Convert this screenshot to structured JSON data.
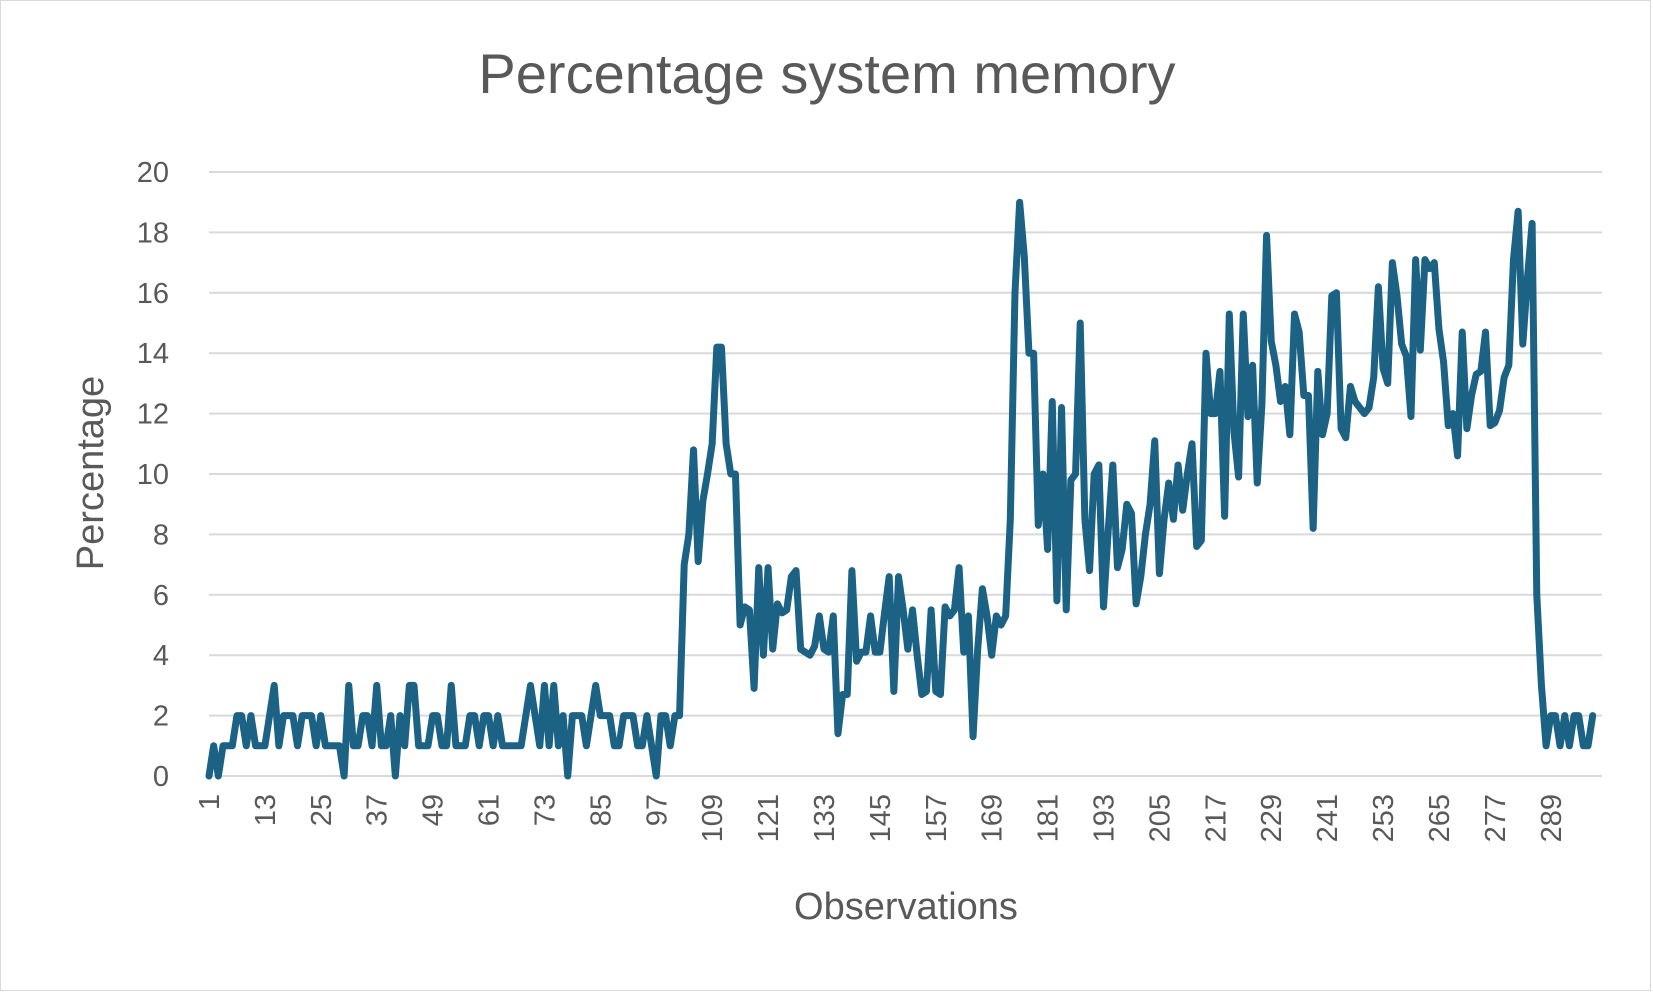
{
  "chart_data": {
    "type": "line",
    "title": "Percentage system memory",
    "xlabel": "Observations",
    "ylabel": "Percentage",
    "ylim": [
      0,
      20
    ],
    "yticks": [
      0,
      2,
      4,
      6,
      8,
      10,
      12,
      14,
      16,
      18,
      20
    ],
    "xlim": [
      1,
      300
    ],
    "xticks": [
      1,
      13,
      25,
      37,
      49,
      61,
      73,
      85,
      97,
      109,
      121,
      133,
      145,
      157,
      169,
      181,
      193,
      205,
      217,
      229,
      241,
      253,
      265,
      277,
      289
    ],
    "grid": true,
    "legend": "none",
    "series": [
      {
        "color": "#1b6285",
        "points": [
          [
            1,
            0
          ],
          [
            2,
            1
          ],
          [
            3,
            0
          ],
          [
            4,
            1
          ],
          [
            5,
            1
          ],
          [
            6,
            1
          ],
          [
            7,
            2
          ],
          [
            8,
            2
          ],
          [
            9,
            1
          ],
          [
            10,
            2
          ],
          [
            11,
            1
          ],
          [
            12,
            1
          ],
          [
            13,
            1
          ],
          [
            14,
            2
          ],
          [
            15,
            3
          ],
          [
            16,
            1
          ],
          [
            17,
            2
          ],
          [
            18,
            2
          ],
          [
            19,
            2
          ],
          [
            20,
            1
          ],
          [
            21,
            2
          ],
          [
            22,
            2
          ],
          [
            23,
            2
          ],
          [
            24,
            1
          ],
          [
            25,
            2
          ],
          [
            26,
            1
          ],
          [
            27,
            1
          ],
          [
            28,
            1
          ],
          [
            29,
            1
          ],
          [
            30,
            0
          ],
          [
            31,
            3
          ],
          [
            32,
            1
          ],
          [
            33,
            1
          ],
          [
            34,
            2
          ],
          [
            35,
            2
          ],
          [
            36,
            1
          ],
          [
            37,
            3
          ],
          [
            38,
            1
          ],
          [
            39,
            1
          ],
          [
            40,
            2
          ],
          [
            41,
            0
          ],
          [
            42,
            2
          ],
          [
            43,
            1
          ],
          [
            44,
            3
          ],
          [
            45,
            3
          ],
          [
            46,
            1
          ],
          [
            47,
            1
          ],
          [
            48,
            1
          ],
          [
            49,
            2
          ],
          [
            50,
            2
          ],
          [
            51,
            1
          ],
          [
            52,
            1
          ],
          [
            53,
            3
          ],
          [
            54,
            1
          ],
          [
            55,
            1
          ],
          [
            56,
            1
          ],
          [
            57,
            2
          ],
          [
            58,
            2
          ],
          [
            59,
            1
          ],
          [
            60,
            2
          ],
          [
            61,
            2
          ],
          [
            62,
            1
          ],
          [
            63,
            2
          ],
          [
            64,
            1
          ],
          [
            65,
            1
          ],
          [
            66,
            1
          ],
          [
            67,
            1
          ],
          [
            68,
            1
          ],
          [
            69,
            2
          ],
          [
            70,
            3
          ],
          [
            71,
            2
          ],
          [
            72,
            1
          ],
          [
            73,
            3
          ],
          [
            74,
            1
          ],
          [
            75,
            3
          ],
          [
            76,
            1
          ],
          [
            77,
            2
          ],
          [
            78,
            0
          ],
          [
            79,
            2
          ],
          [
            80,
            2
          ],
          [
            81,
            2
          ],
          [
            82,
            1
          ],
          [
            83,
            2
          ],
          [
            84,
            3
          ],
          [
            85,
            2
          ],
          [
            86,
            2
          ],
          [
            87,
            2
          ],
          [
            88,
            1
          ],
          [
            89,
            1
          ],
          [
            90,
            2
          ],
          [
            91,
            2
          ],
          [
            92,
            2
          ],
          [
            93,
            1
          ],
          [
            94,
            1
          ],
          [
            95,
            2
          ],
          [
            96,
            1
          ],
          [
            97,
            0
          ],
          [
            98,
            2
          ],
          [
            99,
            2
          ],
          [
            100,
            1
          ],
          [
            101,
            2
          ],
          [
            102,
            2
          ],
          [
            103,
            7
          ],
          [
            104,
            8
          ],
          [
            105,
            10.8
          ],
          [
            106,
            7.1
          ],
          [
            107,
            9.1
          ],
          [
            108,
            10
          ],
          [
            109,
            11
          ],
          [
            110,
            14.2
          ],
          [
            111,
            14.2
          ],
          [
            112,
            11
          ],
          [
            113,
            10
          ],
          [
            114,
            10
          ],
          [
            115,
            5
          ],
          [
            116,
            5.6
          ],
          [
            117,
            5.5
          ],
          [
            118,
            2.9
          ],
          [
            119,
            6.9
          ],
          [
            120,
            4
          ],
          [
            121,
            6.9
          ],
          [
            122,
            4.2
          ],
          [
            123,
            5.7
          ],
          [
            124,
            5.4
          ],
          [
            125,
            5.5
          ],
          [
            126,
            6.6
          ],
          [
            127,
            6.8
          ],
          [
            128,
            4.2
          ],
          [
            129,
            4.1
          ],
          [
            130,
            4
          ],
          [
            131,
            4.3
          ],
          [
            132,
            5.3
          ],
          [
            133,
            4.2
          ],
          [
            134,
            4.1
          ],
          [
            135,
            5.3
          ],
          [
            136,
            1.4
          ],
          [
            137,
            2.7
          ],
          [
            138,
            2.7
          ],
          [
            139,
            6.8
          ],
          [
            140,
            3.8
          ],
          [
            141,
            4.1
          ],
          [
            142,
            4.1
          ],
          [
            143,
            5.3
          ],
          [
            144,
            4.1
          ],
          [
            145,
            4.1
          ],
          [
            146,
            5.4
          ],
          [
            147,
            6.6
          ],
          [
            148,
            2.8
          ],
          [
            149,
            6.6
          ],
          [
            150,
            5.5
          ],
          [
            151,
            4.2
          ],
          [
            152,
            5.5
          ],
          [
            153,
            4
          ],
          [
            154,
            2.7
          ],
          [
            155,
            2.8
          ],
          [
            156,
            5.5
          ],
          [
            157,
            2.8
          ],
          [
            158,
            2.7
          ],
          [
            159,
            5.6
          ],
          [
            160,
            5.3
          ],
          [
            161,
            5.5
          ],
          [
            162,
            6.9
          ],
          [
            163,
            4.1
          ],
          [
            164,
            5.3
          ],
          [
            165,
            1.3
          ],
          [
            166,
            4.2
          ],
          [
            167,
            6.2
          ],
          [
            168,
            5.3
          ],
          [
            169,
            4
          ],
          [
            170,
            5.3
          ],
          [
            171,
            5
          ],
          [
            172,
            5.3
          ],
          [
            173,
            8.5
          ],
          [
            174,
            16
          ],
          [
            175,
            19
          ],
          [
            176,
            17.2
          ],
          [
            177,
            14
          ],
          [
            178,
            14
          ],
          [
            179,
            8.3
          ],
          [
            180,
            10
          ],
          [
            181,
            7.5
          ],
          [
            182,
            12.4
          ],
          [
            183,
            5.8
          ],
          [
            184,
            12.2
          ],
          [
            185,
            5.5
          ],
          [
            186,
            9.8
          ],
          [
            187,
            10
          ],
          [
            188,
            15
          ],
          [
            189,
            8.5
          ],
          [
            190,
            6.8
          ],
          [
            191,
            10
          ],
          [
            192,
            10.3
          ],
          [
            193,
            5.6
          ],
          [
            194,
            8.1
          ],
          [
            195,
            10.3
          ],
          [
            196,
            6.9
          ],
          [
            197,
            7.5
          ],
          [
            198,
            9
          ],
          [
            199,
            8.7
          ],
          [
            200,
            5.7
          ],
          [
            201,
            6.6
          ],
          [
            202,
            8
          ],
          [
            203,
            9
          ],
          [
            204,
            11.1
          ],
          [
            205,
            6.7
          ],
          [
            206,
            8.5
          ],
          [
            207,
            9.7
          ],
          [
            208,
            8.5
          ],
          [
            209,
            10.3
          ],
          [
            210,
            8.8
          ],
          [
            211,
            10
          ],
          [
            212,
            11
          ],
          [
            213,
            7.6
          ],
          [
            214,
            7.8
          ],
          [
            215,
            14
          ],
          [
            216,
            12
          ],
          [
            217,
            12
          ],
          [
            218,
            13.4
          ],
          [
            219,
            8.6
          ],
          [
            220,
            15.3
          ],
          [
            221,
            11.4
          ],
          [
            222,
            9.9
          ],
          [
            223,
            15.3
          ],
          [
            224,
            11.9
          ],
          [
            225,
            13.6
          ],
          [
            226,
            9.7
          ],
          [
            227,
            12.3
          ],
          [
            228,
            17.9
          ],
          [
            229,
            14.4
          ],
          [
            230,
            13.6
          ],
          [
            231,
            12.4
          ],
          [
            232,
            12.9
          ],
          [
            233,
            11.3
          ],
          [
            234,
            15.3
          ],
          [
            235,
            14.7
          ],
          [
            236,
            12.6
          ],
          [
            237,
            12.6
          ],
          [
            238,
            8.2
          ],
          [
            239,
            13.4
          ],
          [
            240,
            11.3
          ],
          [
            241,
            12
          ],
          [
            242,
            15.9
          ],
          [
            243,
            16
          ],
          [
            244,
            11.5
          ],
          [
            245,
            11.2
          ],
          [
            246,
            12.9
          ],
          [
            247,
            12.4
          ],
          [
            248,
            12.2
          ],
          [
            249,
            12
          ],
          [
            250,
            12.2
          ],
          [
            251,
            13.2
          ],
          [
            252,
            16.2
          ],
          [
            253,
            13.5
          ],
          [
            254,
            13
          ],
          [
            255,
            17
          ],
          [
            256,
            15.9
          ],
          [
            257,
            14.3
          ],
          [
            258,
            13.9
          ],
          [
            259,
            11.9
          ],
          [
            260,
            17.1
          ],
          [
            261,
            14.1
          ],
          [
            262,
            17.1
          ],
          [
            263,
            16.8
          ],
          [
            264,
            17
          ],
          [
            265,
            14.8
          ],
          [
            266,
            13.7
          ],
          [
            267,
            11.6
          ],
          [
            268,
            12
          ],
          [
            269,
            10.6
          ],
          [
            270,
            14.7
          ],
          [
            271,
            11.5
          ],
          [
            272,
            12.6
          ],
          [
            273,
            13.3
          ],
          [
            274,
            13.4
          ],
          [
            275,
            14.7
          ],
          [
            276,
            11.6
          ],
          [
            277,
            11.7
          ],
          [
            278,
            12.1
          ],
          [
            279,
            13.2
          ],
          [
            280,
            13.6
          ],
          [
            281,
            17.1
          ],
          [
            282,
            18.7
          ],
          [
            283,
            14.3
          ],
          [
            284,
            16.5
          ],
          [
            285,
            18.3
          ],
          [
            286,
            6
          ],
          [
            287,
            3
          ],
          [
            288,
            1
          ],
          [
            289,
            2
          ],
          [
            290,
            2
          ],
          [
            291,
            1
          ],
          [
            292,
            2
          ],
          [
            293,
            1
          ],
          [
            294,
            2
          ],
          [
            295,
            2
          ],
          [
            296,
            1
          ],
          [
            297,
            1
          ],
          [
            298,
            2
          ]
        ]
      }
    ]
  }
}
